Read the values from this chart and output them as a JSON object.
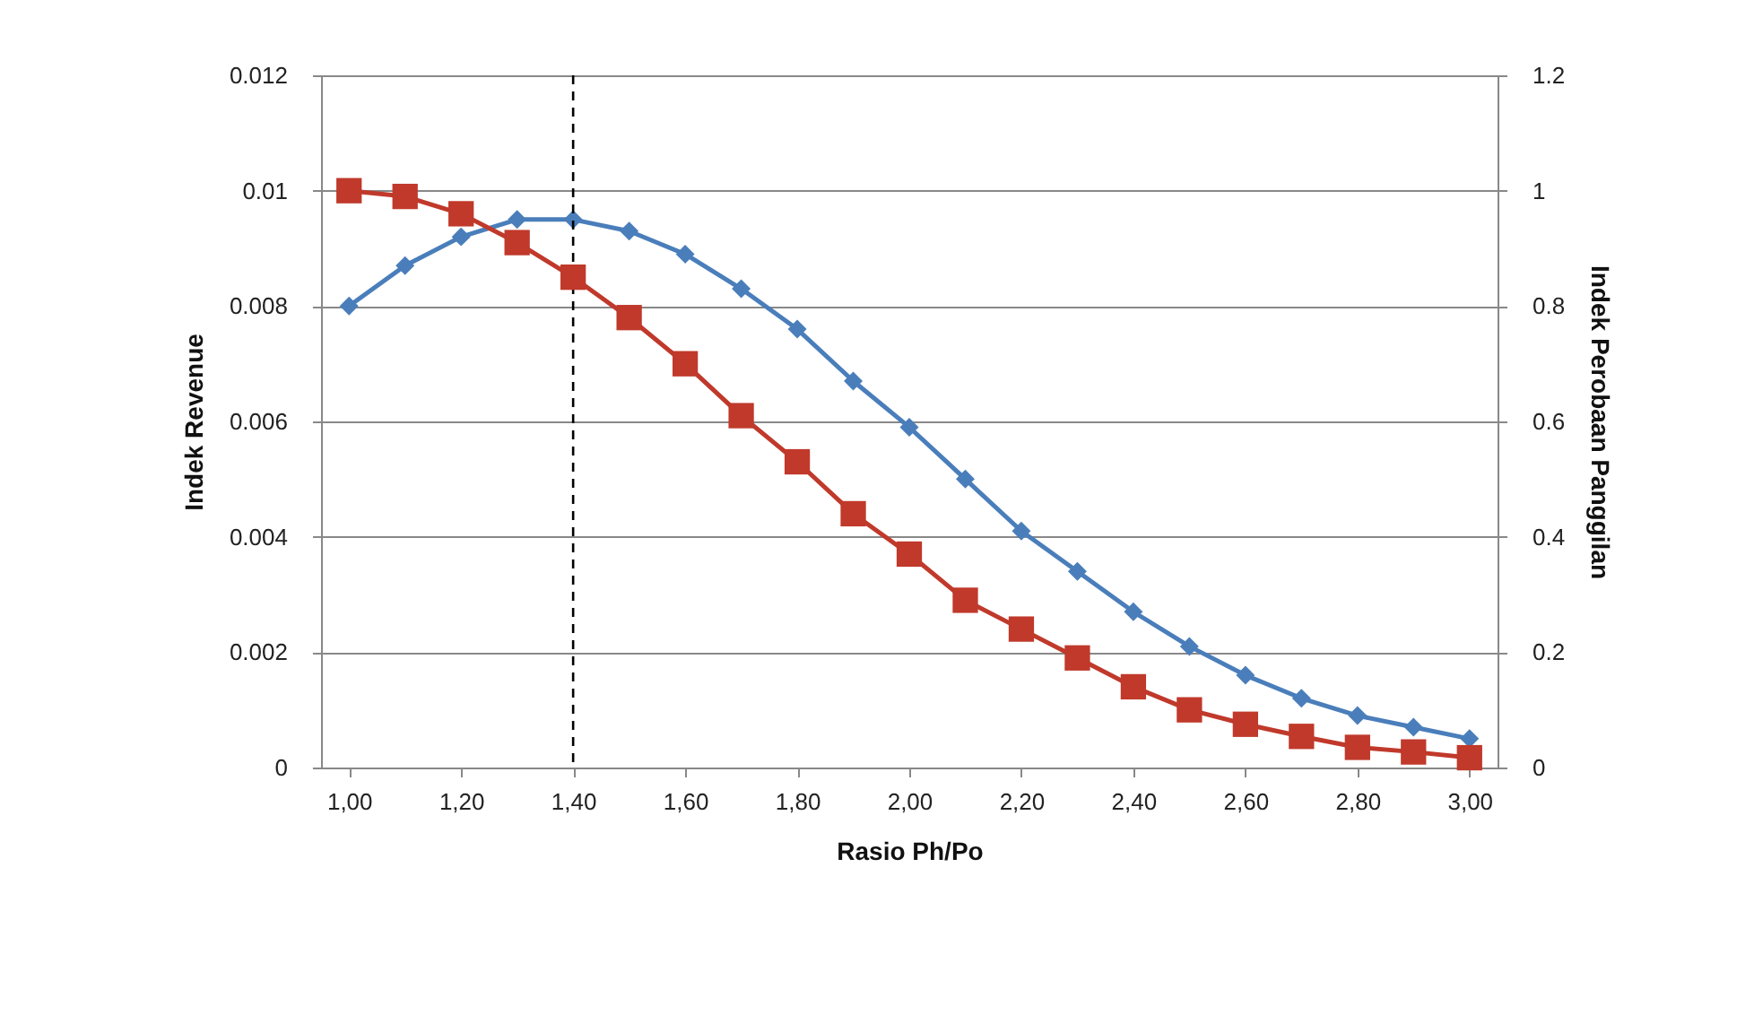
{
  "chart_data": {
    "type": "line",
    "xlabel": "Rasio Ph/Po",
    "ylabel": "Indek Revenue",
    "y2label": "Indek Perobaan Panggilan",
    "x": [
      1.0,
      1.1,
      1.2,
      1.3,
      1.4,
      1.5,
      1.6,
      1.7,
      1.8,
      1.9,
      2.0,
      2.1,
      2.2,
      2.3,
      2.4,
      2.5,
      2.6,
      2.7,
      2.8,
      2.9,
      3.0
    ],
    "series": [
      {
        "color": "#4a7ebb",
        "marker": "diamond",
        "values": [
          0.008,
          0.0087,
          0.0092,
          0.0095,
          0.0095,
          0.0093,
          0.0089,
          0.0083,
          0.0076,
          0.0067,
          0.0059,
          0.005,
          0.0041,
          0.0034,
          0.0027,
          0.0021,
          0.0016,
          0.0012,
          0.0009,
          0.0007,
          0.0005
        ]
      },
      {
        "color": "#c0392b",
        "marker": "square",
        "axis": "y2",
        "values": [
          1.0,
          0.99,
          0.96,
          0.91,
          0.85,
          0.78,
          0.7,
          0.61,
          0.53,
          0.44,
          0.37,
          0.29,
          0.24,
          0.19,
          0.14,
          0.1,
          0.075,
          0.054,
          0.035,
          0.027,
          0.017
        ]
      }
    ],
    "xlim": [
      0.95,
      3.05
    ],
    "xticks": [
      {
        "value": 1.0,
        "label": "1,00"
      },
      {
        "value": 1.2,
        "label": "1,20"
      },
      {
        "value": 1.4,
        "label": "1,40"
      },
      {
        "value": 1.6,
        "label": "1,60"
      },
      {
        "value": 1.8,
        "label": "1,80"
      },
      {
        "value": 2.0,
        "label": "2,00"
      },
      {
        "value": 2.2,
        "label": "2,20"
      },
      {
        "value": 2.4,
        "label": "2,40"
      },
      {
        "value": 2.6,
        "label": "2,60"
      },
      {
        "value": 2.8,
        "label": "2,80"
      },
      {
        "value": 3.0,
        "label": "3,00"
      }
    ],
    "ylim": [
      0,
      0.012
    ],
    "yticks": [
      0,
      0.002,
      0.004,
      0.006,
      0.008,
      0.01,
      0.012
    ],
    "y2lim": [
      0,
      1.2
    ],
    "y2ticks": [
      0,
      0.2,
      0.4,
      0.6,
      0.8,
      1,
      1.2
    ],
    "ref_lines": [
      {
        "axis": "x",
        "value": 1.4,
        "color": "#000000",
        "line_style": "dashed"
      }
    ],
    "grid": "y",
    "line_style": "solid"
  }
}
